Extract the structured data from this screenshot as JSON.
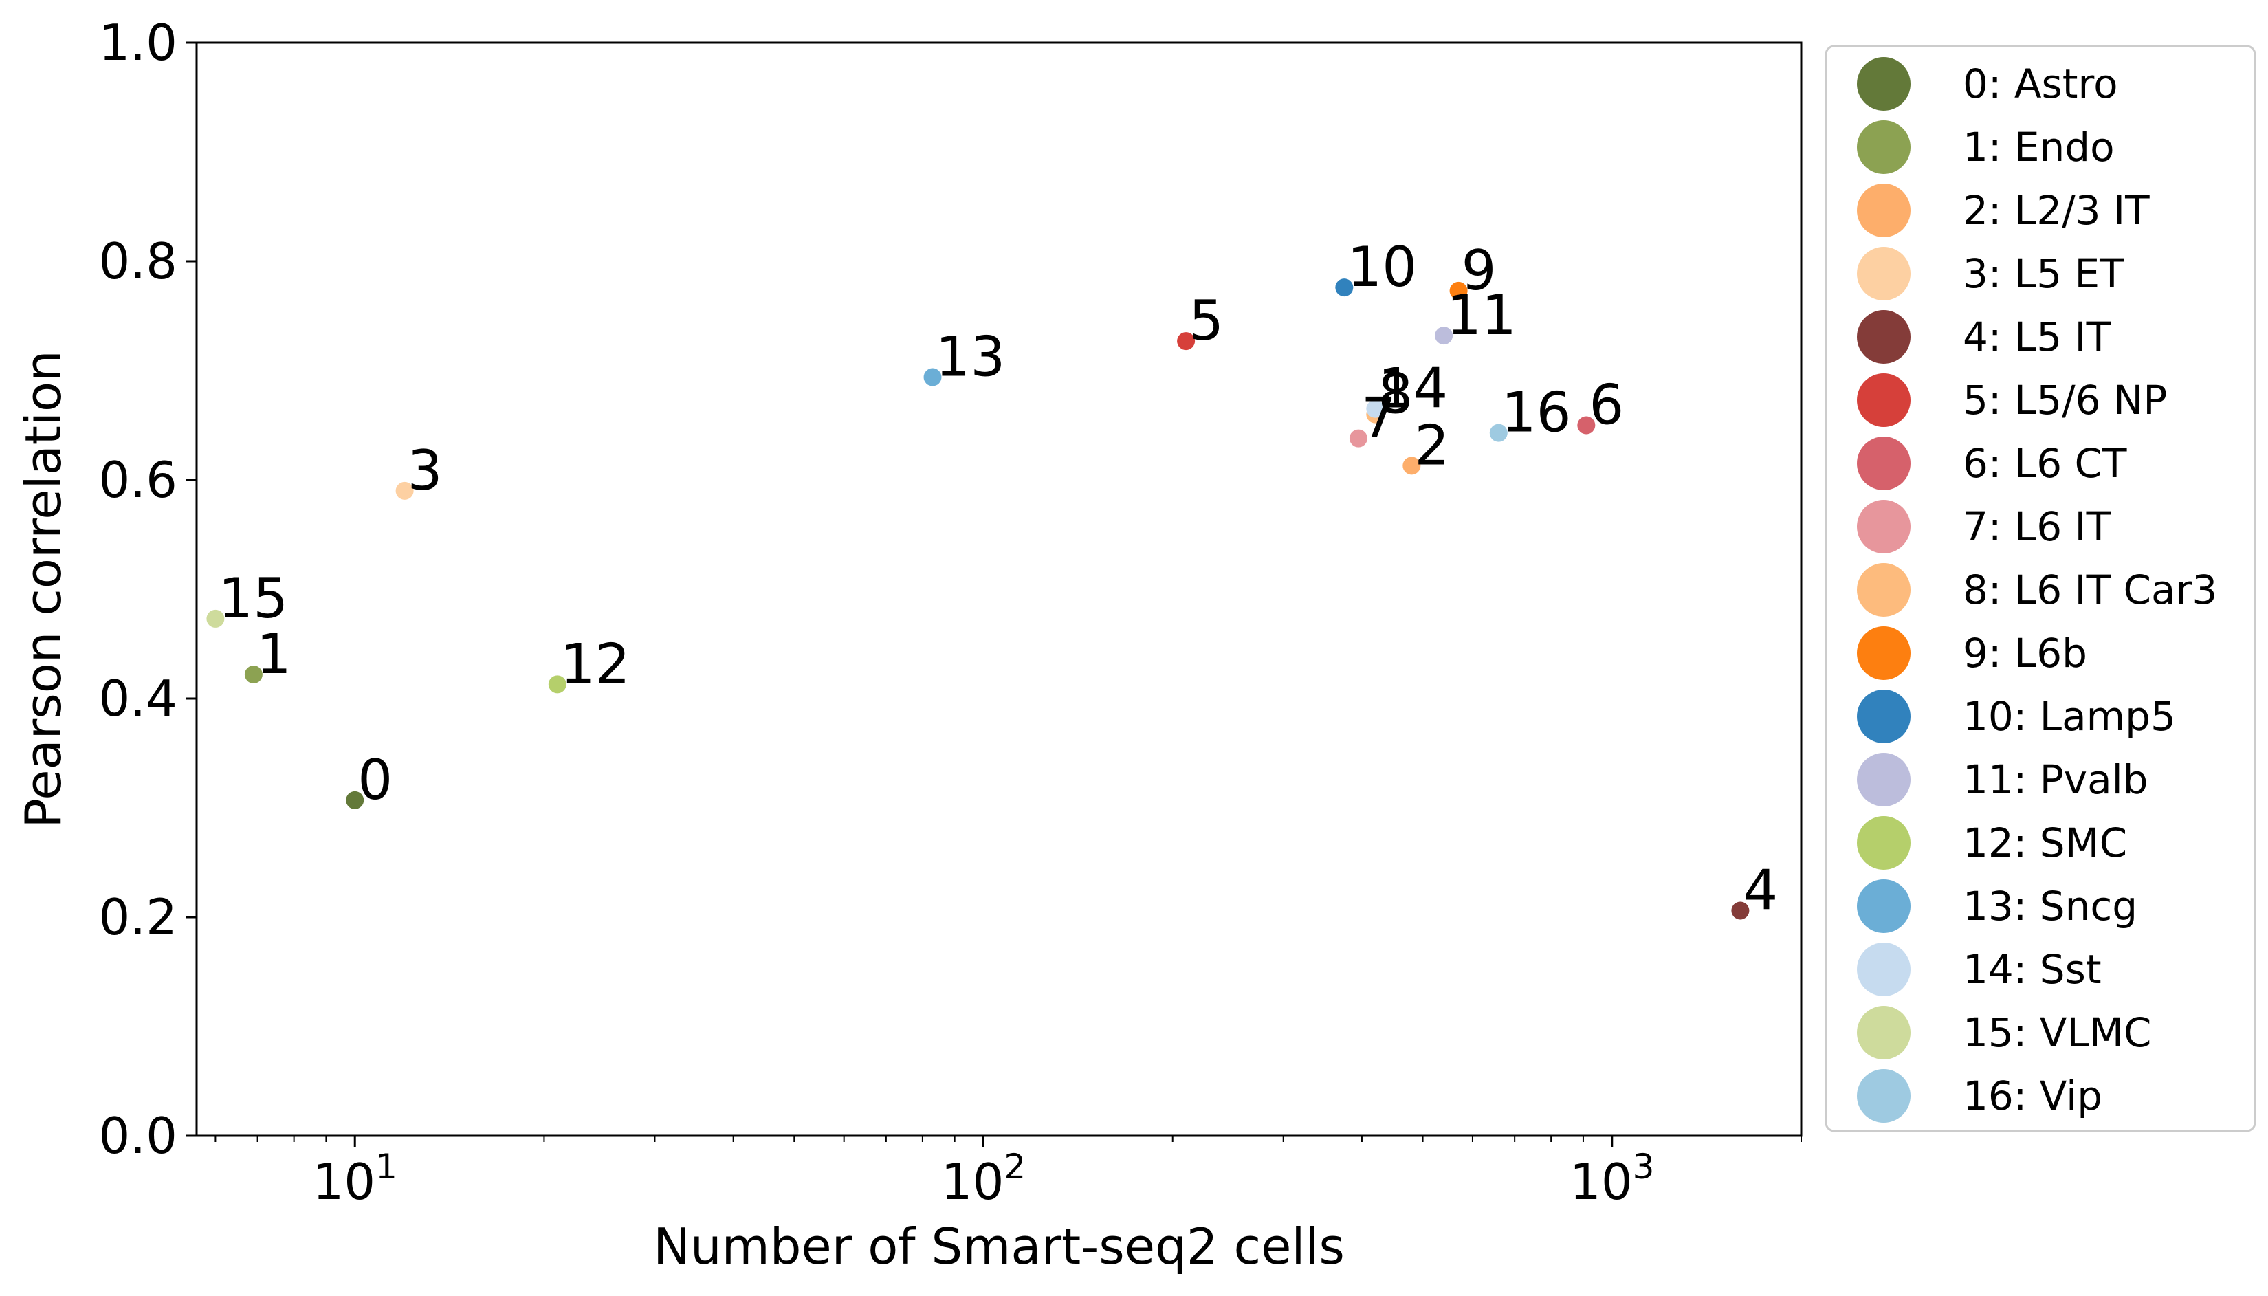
{
  "chart_data": {
    "type": "scatter",
    "xlabel": "Number of Smart-seq2 cells",
    "ylabel": "Pearson correlation",
    "xscale": "log",
    "xlim": [
      5.6,
      2000
    ],
    "ylim": [
      0.0,
      1.0
    ],
    "x_ticks": [
      {
        "value": 10,
        "base": "10",
        "exp": "1"
      },
      {
        "value": 100,
        "base": "10",
        "exp": "2"
      },
      {
        "value": 1000,
        "base": "10",
        "exp": "3"
      }
    ],
    "y_ticks": [
      {
        "value": 0.0,
        "label": "0.0"
      },
      {
        "value": 0.2,
        "label": "0.2"
      },
      {
        "value": 0.4,
        "label": "0.4"
      },
      {
        "value": 0.6,
        "label": "0.6"
      },
      {
        "value": 0.8,
        "label": "0.8"
      },
      {
        "value": 1.0,
        "label": "1.0"
      }
    ],
    "grid": false,
    "legend_position": "outside-right",
    "points": [
      {
        "id": "0",
        "legend": "0: Astro",
        "x": 10,
        "y": 0.307,
        "color": "#637939"
      },
      {
        "id": "1",
        "legend": "1: Endo",
        "x": 6.9,
        "y": 0.422,
        "color": "#8ca252"
      },
      {
        "id": "2",
        "legend": "2: L2/3 IT",
        "x": 480,
        "y": 0.613,
        "color": "#fdae6b"
      },
      {
        "id": "3",
        "legend": "3: L5 ET",
        "x": 12,
        "y": 0.59,
        "color": "#fdd0a2"
      },
      {
        "id": "4",
        "legend": "4: L5 IT",
        "x": 1600,
        "y": 0.206,
        "color": "#843c39"
      },
      {
        "id": "5",
        "legend": "5: L5/6 NP",
        "x": 210,
        "y": 0.727,
        "color": "#d6403a"
      },
      {
        "id": "6",
        "legend": "6: L6 CT",
        "x": 910,
        "y": 0.65,
        "color": "#d6616b"
      },
      {
        "id": "7",
        "legend": "7: L6 IT",
        "x": 395,
        "y": 0.638,
        "color": "#e7969c"
      },
      {
        "id": "8",
        "legend": "8: L6 IT Car3",
        "x": 420,
        "y": 0.66,
        "color": "#fdbb7d"
      },
      {
        "id": "9",
        "legend": "9: L6b",
        "x": 570,
        "y": 0.773,
        "color": "#fd7f10"
      },
      {
        "id": "10",
        "legend": "10: Lamp5",
        "x": 375,
        "y": 0.776,
        "color": "#3182bd"
      },
      {
        "id": "11",
        "legend": "11: Pvalb",
        "x": 540,
        "y": 0.732,
        "color": "#bcbddc"
      },
      {
        "id": "12",
        "legend": "12: SMC",
        "x": 21,
        "y": 0.413,
        "color": "#b5cf6b"
      },
      {
        "id": "13",
        "legend": "13: Sncg",
        "x": 83,
        "y": 0.694,
        "color": "#6baed6"
      },
      {
        "id": "14",
        "legend": "14: Sst",
        "x": 420,
        "y": 0.665,
        "color": "#c6dbef"
      },
      {
        "id": "15",
        "legend": "15: VLMC",
        "x": 6,
        "y": 0.473,
        "color": "#cedb9c"
      },
      {
        "id": "16",
        "legend": "16: Vip",
        "x": 660,
        "y": 0.643,
        "color": "#9ecae1"
      }
    ]
  }
}
